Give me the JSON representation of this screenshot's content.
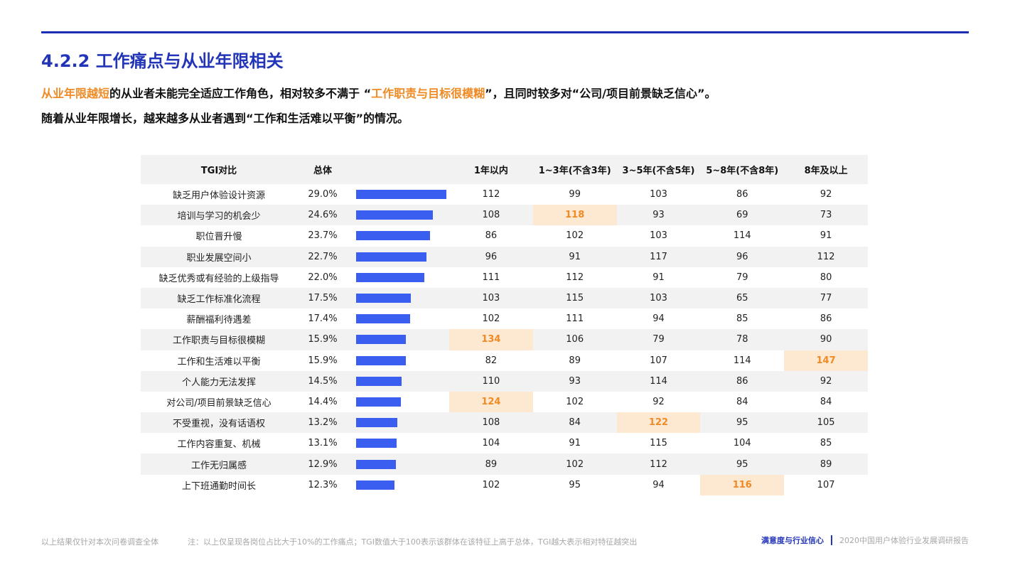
{
  "header": {
    "title": "4.2.2 工作痛点与从业年限相关"
  },
  "intro": {
    "line1": {
      "hl1": "从业年限越短",
      "t1": "的从业者未能完全适应工作角色，相对较多不满于 “",
      "hl2": "工作职责与目标很模糊",
      "t2": "”，且同时较多对“公司/项目前景缺乏信心”。"
    },
    "line2": "随着从业年限增长，越来越多从业者遇到“工作和生活难以平衡”的情况。"
  },
  "table": {
    "headers": {
      "label": "TGI对比",
      "total": "总体",
      "cols": [
        "1年以内",
        "1~3年(不含3年)",
        "3~5年(不含5年)",
        "5~8年(不含8年)",
        "8年及以上"
      ]
    },
    "rows": [
      {
        "label": "缺乏用户体验设计资源",
        "total": "29.0%",
        "share": 0.29,
        "vals": [
          "112",
          "99",
          "103",
          "86",
          "92"
        ],
        "hot": []
      },
      {
        "label": "培训与学习的机会少",
        "total": "24.6%",
        "share": 0.246,
        "vals": [
          "108",
          "118",
          "93",
          "69",
          "73"
        ],
        "hot": [
          1
        ]
      },
      {
        "label": "职位晋升慢",
        "total": "23.7%",
        "share": 0.237,
        "vals": [
          "86",
          "102",
          "103",
          "114",
          "91"
        ],
        "hot": []
      },
      {
        "label": "职业发展空间小",
        "total": "22.7%",
        "share": 0.227,
        "vals": [
          "96",
          "91",
          "117",
          "96",
          "112"
        ],
        "hot": []
      },
      {
        "label": "缺乏优秀或有经验的上级指导",
        "total": "22.0%",
        "share": 0.22,
        "vals": [
          "111",
          "112",
          "91",
          "79",
          "80"
        ],
        "hot": []
      },
      {
        "label": "缺乏工作标准化流程",
        "total": "17.5%",
        "share": 0.175,
        "vals": [
          "103",
          "115",
          "103",
          "65",
          "77"
        ],
        "hot": []
      },
      {
        "label": "薪酬福利待遇差",
        "total": "17.4%",
        "share": 0.174,
        "vals": [
          "102",
          "111",
          "94",
          "85",
          "86"
        ],
        "hot": []
      },
      {
        "label": "工作职责与目标很模糊",
        "total": "15.9%",
        "share": 0.159,
        "vals": [
          "134",
          "106",
          "79",
          "78",
          "90"
        ],
        "hot": [
          0
        ]
      },
      {
        "label": "工作和生活难以平衡",
        "total": "15.9%",
        "share": 0.159,
        "vals": [
          "82",
          "89",
          "107",
          "114",
          "147"
        ],
        "hot": [
          4
        ]
      },
      {
        "label": "个人能力无法发挥",
        "total": "14.5%",
        "share": 0.145,
        "vals": [
          "110",
          "93",
          "114",
          "86",
          "92"
        ],
        "hot": []
      },
      {
        "label": "对公司/项目前景缺乏信心",
        "total": "14.4%",
        "share": 0.144,
        "vals": [
          "124",
          "102",
          "92",
          "84",
          "84"
        ],
        "hot": [
          0
        ]
      },
      {
        "label": "不受重视，没有话语权",
        "total": "13.2%",
        "share": 0.132,
        "vals": [
          "108",
          "84",
          "122",
          "95",
          "105"
        ],
        "hot": [
          2
        ]
      },
      {
        "label": "工作内容重复、机械",
        "total": "13.1%",
        "share": 0.131,
        "vals": [
          "104",
          "91",
          "115",
          "104",
          "85"
        ],
        "hot": []
      },
      {
        "label": "工作无归属感",
        "total": "12.9%",
        "share": 0.129,
        "vals": [
          "89",
          "102",
          "112",
          "95",
          "89"
        ],
        "hot": []
      },
      {
        "label": "上下班通勤时间长",
        "total": "12.3%",
        "share": 0.123,
        "vals": [
          "102",
          "95",
          "94",
          "116",
          "107"
        ],
        "hot": [
          3
        ]
      }
    ]
  },
  "footer": {
    "source": "以上结果仅针对本次问卷调查全体",
    "note": "注：以上仅呈现各岗位占比大于10%的工作痛点；TGI数值大于100表示该群体在该特征上高于总体，TGI越大表示相对特征越突出",
    "section": "满意度与行业信心",
    "report": "2020中国用户体验行业发展调研报告"
  },
  "colors": {
    "accent_blue": "#2234b8",
    "bar_blue": "#3a5ef0",
    "highlight_orange": "#f08a24",
    "highlight_bg": "#fde8d2"
  }
}
